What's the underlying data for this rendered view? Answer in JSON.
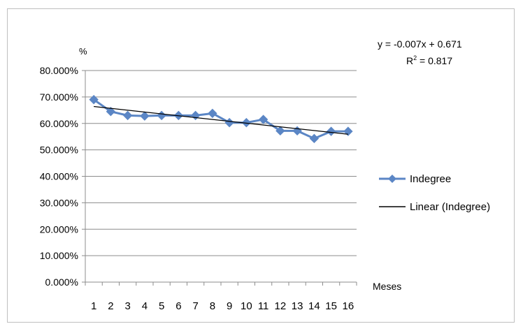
{
  "chart_data": {
    "type": "line",
    "title": "",
    "xlabel": "Meses",
    "ylabel": "%",
    "categories": [
      "1",
      "2",
      "3",
      "4",
      "5",
      "6",
      "7",
      "8",
      "9",
      "10",
      "11",
      "12",
      "13",
      "14",
      "15",
      "16"
    ],
    "series": [
      {
        "name": "Indegree",
        "values": [
          0.69,
          0.645,
          0.63,
          0.628,
          0.63,
          0.63,
          0.63,
          0.638,
          0.603,
          0.603,
          0.615,
          0.572,
          0.572,
          0.543,
          0.57,
          0.57
        ],
        "color": "#5b86c5",
        "marker": "diamond"
      }
    ],
    "trendline": {
      "name": "Linear (Indegree)",
      "type": "linear",
      "slope": -0.007,
      "intercept": 0.671,
      "color": "#000000"
    },
    "equation_text": "y = -0.007x + 0.671",
    "r2_label": "R",
    "r2_sup": "2",
    "r2_value": " = 0.817",
    "ylim": [
      0,
      0.8
    ],
    "yticks": [
      "0.000%",
      "10.000%",
      "20.000%",
      "30.000%",
      "40.000%",
      "50.000%",
      "60.000%",
      "70.000%",
      "80.000%"
    ],
    "grid": true,
    "legend_position": "right"
  }
}
